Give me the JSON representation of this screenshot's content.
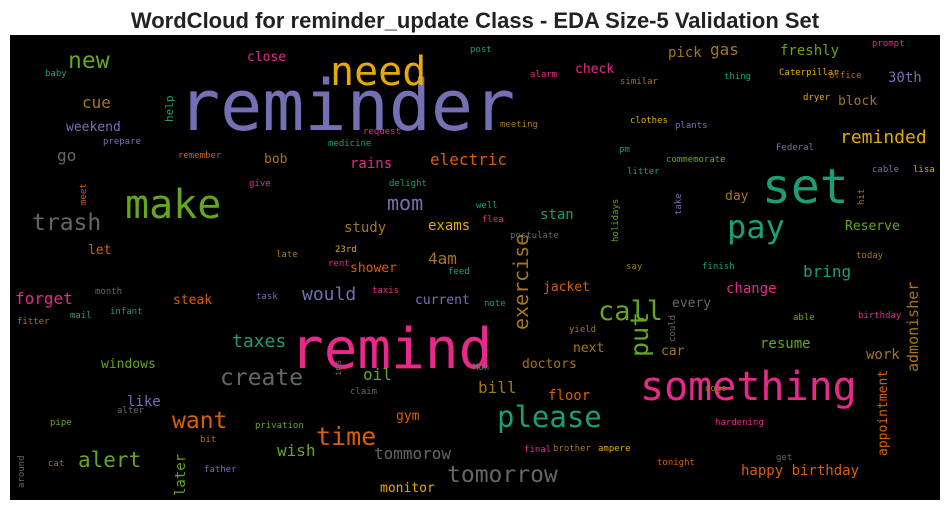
{
  "chart_data": {
    "type": "wordcloud",
    "title": "WordCloud for reminder_update Class - EDA Size-5 Validation Set",
    "background": "#000000",
    "words": [
      {
        "text": "reminder",
        "color": "#7570b3"
      },
      {
        "text": "need",
        "color": "#e6ab02"
      },
      {
        "text": "make",
        "color": "#66a61e"
      },
      {
        "text": "set",
        "color": "#1b9e77"
      },
      {
        "text": "pay",
        "color": "#1b9e77"
      },
      {
        "text": "remind",
        "color": "#e7298a"
      },
      {
        "text": "something",
        "color": "#e7298a"
      },
      {
        "text": "please",
        "color": "#1b9e77"
      },
      {
        "text": "time",
        "color": "#d95f02"
      },
      {
        "text": "create",
        "color": "#666666"
      },
      {
        "text": "tomorrow",
        "color": "#666666"
      },
      {
        "text": "new",
        "color": "#66a61e"
      },
      {
        "text": "trash",
        "color": "#666666"
      },
      {
        "text": "call",
        "color": "#66a61e"
      },
      {
        "text": "want",
        "color": "#d95f02"
      },
      {
        "text": "alert",
        "color": "#66a61e"
      },
      {
        "text": "put",
        "color": "#66a61e"
      },
      {
        "text": "exercise",
        "color": "#a6761d"
      },
      {
        "text": "mom",
        "color": "#7570b3"
      },
      {
        "text": "would",
        "color": "#7570b3"
      },
      {
        "text": "taxes",
        "color": "#1b9e77"
      },
      {
        "text": "electric",
        "color": "#d95f02"
      },
      {
        "text": "reminded",
        "color": "#e6ab02"
      },
      {
        "text": "gas",
        "color": "#a6761d"
      },
      {
        "text": "pick",
        "color": "#a6761d"
      },
      {
        "text": "freshly",
        "color": "#66a61e"
      },
      {
        "text": "check",
        "color": "#e7298a"
      },
      {
        "text": "close",
        "color": "#e7298a"
      },
      {
        "text": "30th",
        "color": "#7570b3"
      },
      {
        "text": "block",
        "color": "#a6761d"
      },
      {
        "text": "cue",
        "color": "#a6761d"
      },
      {
        "text": "weekend",
        "color": "#7570b3"
      },
      {
        "text": "go",
        "color": "#666666"
      },
      {
        "text": "help",
        "color": "#1b9e77"
      },
      {
        "text": "bob",
        "color": "#a6761d"
      },
      {
        "text": "rains",
        "color": "#e7298a"
      },
      {
        "text": "study",
        "color": "#a6761d"
      },
      {
        "text": "exams",
        "color": "#e6ab02"
      },
      {
        "text": "stan",
        "color": "#1b9e77"
      },
      {
        "text": "day",
        "color": "#a6761d"
      },
      {
        "text": "Reserve",
        "color": "#66a61e"
      },
      {
        "text": "let",
        "color": "#d95f02"
      },
      {
        "text": "4am",
        "color": "#a6761d"
      },
      {
        "text": "shower",
        "color": "#d95f02"
      },
      {
        "text": "bring",
        "color": "#1b9e77"
      },
      {
        "text": "forget",
        "color": "#e7298a"
      },
      {
        "text": "steak",
        "color": "#d95f02"
      },
      {
        "text": "current",
        "color": "#7570b3"
      },
      {
        "text": "jacket",
        "color": "#d95f02"
      },
      {
        "text": "change",
        "color": "#e7298a"
      },
      {
        "text": "every",
        "color": "#666666"
      },
      {
        "text": "admonisher",
        "color": "#a6761d"
      },
      {
        "text": "resume",
        "color": "#66a61e"
      },
      {
        "text": "work",
        "color": "#a6761d"
      },
      {
        "text": "car",
        "color": "#a6761d"
      },
      {
        "text": "windows",
        "color": "#66a61e"
      },
      {
        "text": "oil",
        "color": "#66a61e"
      },
      {
        "text": "doctors",
        "color": "#a6761d"
      },
      {
        "text": "next",
        "color": "#a6761d"
      },
      {
        "text": "bill",
        "color": "#a6761d"
      },
      {
        "text": "floor",
        "color": "#d95f02"
      },
      {
        "text": "like",
        "color": "#7570b3"
      },
      {
        "text": "gym",
        "color": "#d95f02"
      },
      {
        "text": "appointment",
        "color": "#d95f02"
      },
      {
        "text": "wish",
        "color": "#66a61e"
      },
      {
        "text": "tommorow",
        "color": "#666666"
      },
      {
        "text": "later",
        "color": "#66a61e"
      },
      {
        "text": "happy birthday",
        "color": "#d95f02"
      },
      {
        "text": "monitor",
        "color": "#e6ab02"
      },
      {
        "text": "post",
        "color": "#1b9e77"
      },
      {
        "text": "prompt",
        "color": "#e7298a"
      },
      {
        "text": "baby",
        "color": "#1b9e77"
      },
      {
        "text": "Caterpillar",
        "color": "#e6ab02"
      },
      {
        "text": "thing",
        "color": "#1b9e77"
      },
      {
        "text": "office",
        "color": "#d95f02"
      },
      {
        "text": "alarm",
        "color": "#e7298a"
      },
      {
        "text": "similar",
        "color": "#a6761d"
      },
      {
        "text": "dryer",
        "color": "#e6ab02"
      },
      {
        "text": "meeting",
        "color": "#a6761d"
      },
      {
        "text": "clothes",
        "color": "#e6ab02"
      },
      {
        "text": "plants",
        "color": "#7570b3"
      },
      {
        "text": "request",
        "color": "#e7298a"
      },
      {
        "text": "prepare",
        "color": "#7570b3"
      },
      {
        "text": "medicine",
        "color": "#1b9e77"
      },
      {
        "text": "remember",
        "color": "#d95f02"
      },
      {
        "text": "pm",
        "color": "#1b9e77"
      },
      {
        "text": "commemorate",
        "color": "#66a61e"
      },
      {
        "text": "Federal",
        "color": "#7570b3"
      },
      {
        "text": "delight",
        "color": "#1b9e77"
      },
      {
        "text": "give",
        "color": "#e7298a"
      },
      {
        "text": "meet",
        "color": "#d95f02"
      },
      {
        "text": "litter",
        "color": "#1b9e77"
      },
      {
        "text": "cable",
        "color": "#7570b3"
      },
      {
        "text": "lisa",
        "color": "#e6ab02"
      },
      {
        "text": "hit",
        "color": "#a6761d"
      },
      {
        "text": "well",
        "color": "#1b9e77"
      },
      {
        "text": "take",
        "color": "#7570b3"
      },
      {
        "text": "flea",
        "color": "#e7298a"
      },
      {
        "text": "postulate",
        "color": "#666666"
      },
      {
        "text": "holidays",
        "color": "#66a61e"
      },
      {
        "text": "23rd",
        "color": "#e6ab02"
      },
      {
        "text": "late",
        "color": "#a6761d"
      },
      {
        "text": "rent",
        "color": "#e7298a"
      },
      {
        "text": "say",
        "color": "#a6761d"
      },
      {
        "text": "today",
        "color": "#a6761d"
      },
      {
        "text": "feed",
        "color": "#1b9e77"
      },
      {
        "text": "finish",
        "color": "#1b9e77"
      },
      {
        "text": "month",
        "color": "#666666"
      },
      {
        "text": "task",
        "color": "#7570b3"
      },
      {
        "text": "taxis",
        "color": "#e7298a"
      },
      {
        "text": "note",
        "color": "#1b9e77"
      },
      {
        "text": "birthday",
        "color": "#e7298a"
      },
      {
        "text": "mail",
        "color": "#1b9e77"
      },
      {
        "text": "infant",
        "color": "#1b9e77"
      },
      {
        "text": "fitter",
        "color": "#a6761d"
      },
      {
        "text": "able",
        "color": "#66a61e"
      },
      {
        "text": "yield",
        "color": "#a6761d"
      },
      {
        "text": "could",
        "color": "#666666"
      },
      {
        "text": "ins",
        "color": "#666666"
      },
      {
        "text": "Mon",
        "color": "#1b9e77"
      },
      {
        "text": "claim",
        "color": "#666666"
      },
      {
        "text": "dogs",
        "color": "#a6761d"
      },
      {
        "text": "pipe",
        "color": "#66a61e"
      },
      {
        "text": "alter",
        "color": "#666666"
      },
      {
        "text": "privation",
        "color": "#66a61e"
      },
      {
        "text": "bit",
        "color": "#a6761d"
      },
      {
        "text": "hardening",
        "color": "#e7298a"
      },
      {
        "text": "final",
        "color": "#e7298a"
      },
      {
        "text": "brother",
        "color": "#a6761d"
      },
      {
        "text": "ampere",
        "color": "#e6ab02"
      },
      {
        "text": "around",
        "color": "#666666"
      },
      {
        "text": "cat",
        "color": "#d95f02"
      },
      {
        "text": "father",
        "color": "#7570b3"
      },
      {
        "text": "get",
        "color": "#666666"
      },
      {
        "text": "tonight",
        "color": "#d95f02"
      }
    ]
  }
}
